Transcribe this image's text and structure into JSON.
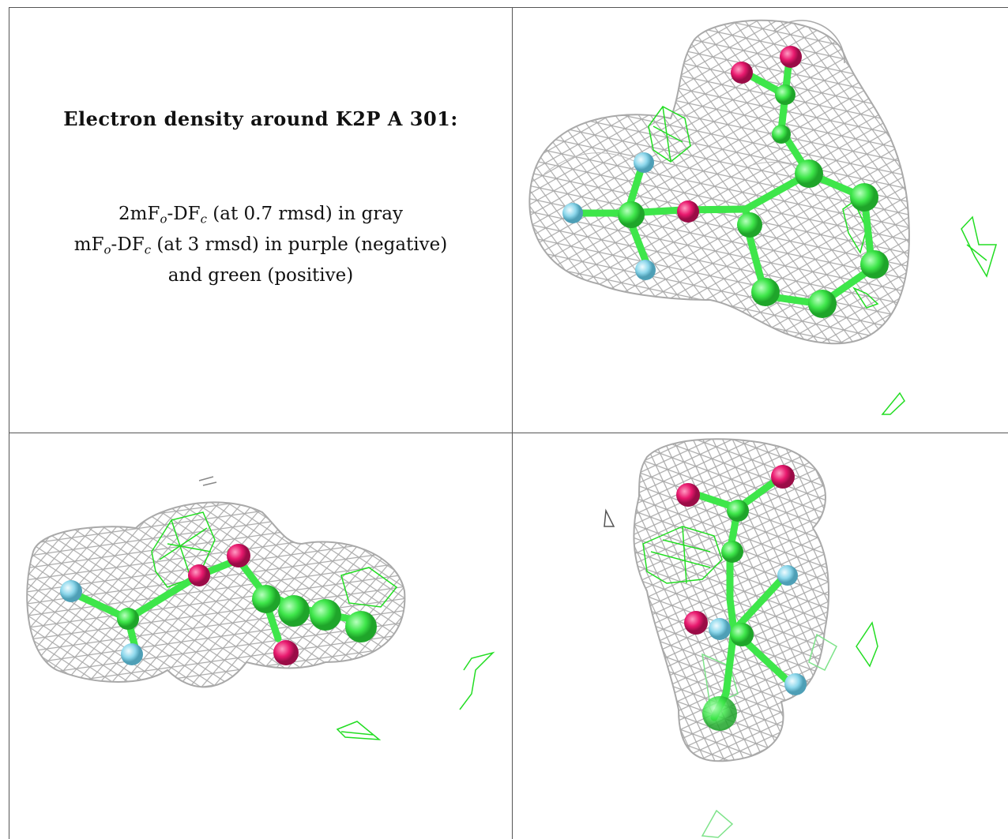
{
  "caption": {
    "title": "Electron density around K2P A 301:",
    "line1": {
      "pre": "2mF",
      "sub_o": "o",
      "mid": "-DF",
      "sub_c": "c",
      "post": " (at 0.7 rmsd) in gray"
    },
    "line2": {
      "pre": "mF",
      "sub_o": "o",
      "mid": "-DF",
      "sub_c": "c",
      "post": " (at 3 rmsd) in purple (negative)"
    },
    "line3": "and green (positive)"
  },
  "colors": {
    "mesh_2fofc": "#a9a9a9",
    "mesh_fofc_positive": "#22dd22",
    "carbon": "#3ee64a",
    "oxygen": "#e8196e",
    "fluorine": "#8ed8ec",
    "border": "#555555"
  },
  "views": [
    {
      "name": "view-top-right",
      "mesh": "2mFo-DFc gray cage",
      "difference_density": "positive green"
    },
    {
      "name": "view-bottom-left",
      "mesh": "2mFo-DFc gray cage",
      "difference_density": "positive green"
    },
    {
      "name": "view-bottom-right",
      "mesh": "2mFo-DFc gray cage",
      "difference_density": "positive green"
    }
  ]
}
